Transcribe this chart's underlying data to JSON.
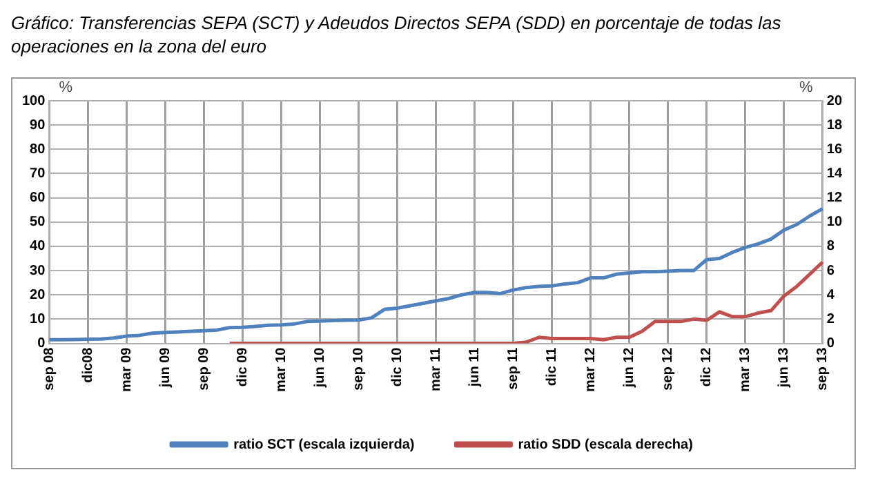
{
  "chart_data": {
    "type": "line",
    "title": "Gráfico: Transferencias SEPA (SCT) y Adeudos Directos SEPA (SDD) en porcentaje de todas las operaciones en la zona del euro",
    "categories": [
      "sep 08",
      null,
      null,
      "dic08",
      null,
      null,
      "mar 09",
      null,
      null,
      "jun 09",
      null,
      null,
      "sep 09",
      null,
      null,
      "dic 09",
      null,
      null,
      "mar 10",
      null,
      null,
      "jun 10",
      null,
      null,
      "sep 10",
      null,
      null,
      "dic 10",
      null,
      null,
      "mar 11",
      null,
      null,
      "jun 11",
      null,
      null,
      "sep 11",
      null,
      null,
      "dic 11",
      null,
      null,
      "mar 12",
      null,
      null,
      "jun 12",
      null,
      null,
      "sep 12",
      null,
      null,
      "dic 12",
      null,
      null,
      "mar 13",
      null,
      null,
      "jun 13",
      null,
      null,
      "sep 13"
    ],
    "series": [
      {
        "name": "ratio SCT (escala izquierda)",
        "color": "#4f81bd",
        "values": [
          1.5,
          1.5,
          1.6,
          1.7,
          1.8,
          2.2,
          3,
          3.3,
          4.2,
          4.5,
          4.7,
          5,
          5.2,
          5.5,
          6.5,
          6.6,
          7,
          7.5,
          7.6,
          8,
          9,
          9.2,
          9.4,
          9.5,
          9.6,
          10.5,
          14,
          14.5,
          15.5,
          16.5,
          17.5,
          18.5,
          20,
          21,
          21,
          20.5,
          22,
          23,
          23.5,
          23.7,
          24.5,
          25,
          27,
          27,
          28.5,
          29,
          29.5,
          29.5,
          29.7,
          30,
          30,
          34.5,
          35,
          37.5,
          39.5,
          41,
          43,
          46.7,
          49,
          52.5,
          55.5
        ]
      },
      {
        "name": "ratio SDD (escala derecha)",
        "color": "#c0504d",
        "axis": "y2",
        "values": [
          null,
          null,
          null,
          null,
          null,
          null,
          null,
          null,
          null,
          null,
          null,
          null,
          null,
          null,
          0,
          0,
          0,
          0,
          0,
          0,
          0,
          0,
          0,
          0,
          0,
          0,
          0,
          0,
          0,
          0,
          0,
          0,
          0,
          0,
          0,
          0,
          0,
          0.1,
          0.5,
          0.4,
          0.4,
          0.4,
          0.4,
          0.3,
          0.5,
          0.5,
          1.0,
          1.8,
          1.8,
          1.8,
          2.0,
          1.9,
          2.6,
          2.2,
          2.2,
          2.5,
          2.7,
          3.9,
          4.7,
          5.7,
          6.7
        ]
      }
    ],
    "ylabel": "%",
    "y2label": "%",
    "ylim": [
      0,
      100
    ],
    "yticks": [
      0,
      10,
      20,
      30,
      40,
      50,
      60,
      70,
      80,
      90,
      100
    ],
    "y2lim": [
      0,
      20
    ],
    "y2ticks": [
      0,
      2,
      4,
      6,
      8,
      10,
      12,
      14,
      16,
      18,
      20
    ],
    "grid": true,
    "legend": "bottom",
    "marker": "none",
    "line_style": "solid"
  }
}
